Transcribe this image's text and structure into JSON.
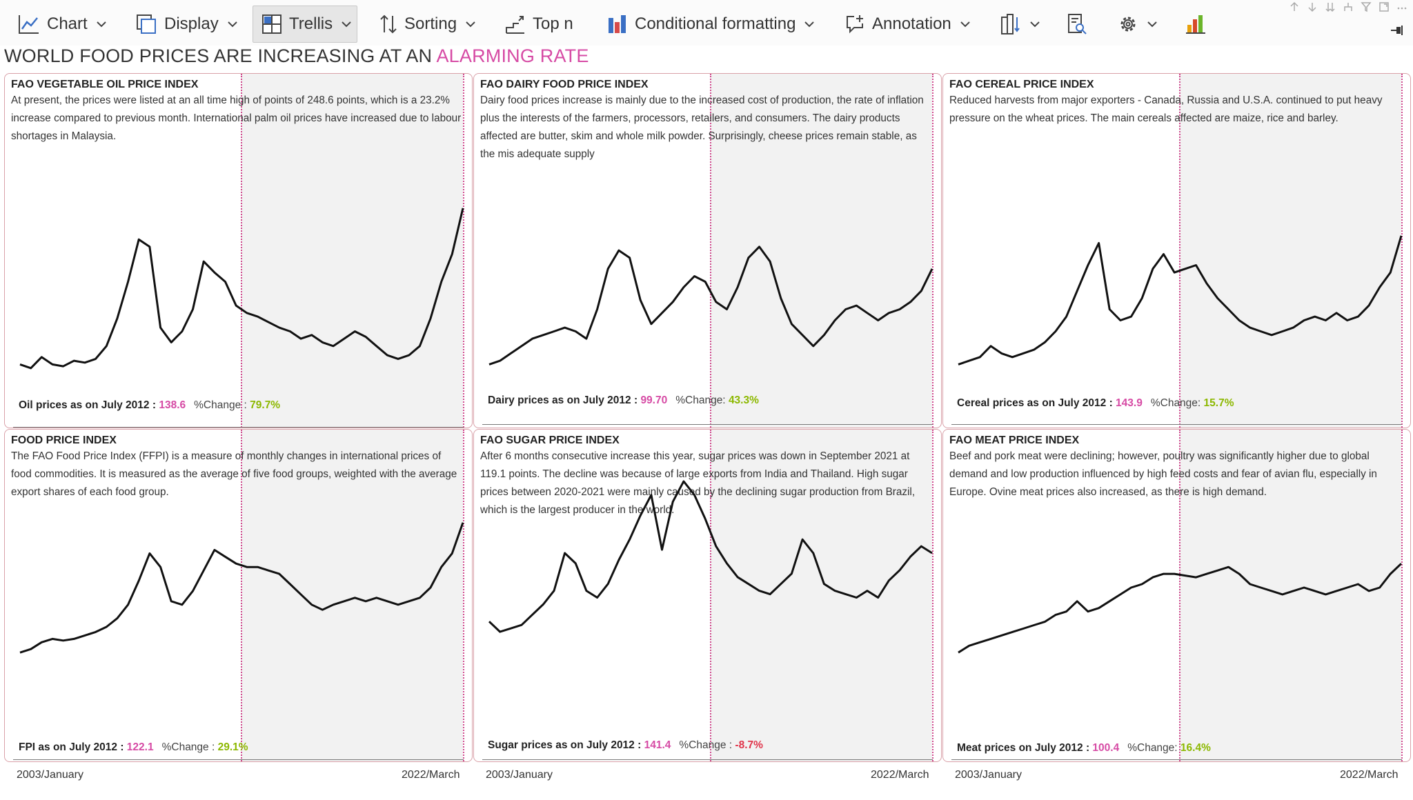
{
  "toolbar": {
    "chart_label": "Chart",
    "display_label": "Display",
    "trellis_label": "Trellis",
    "sorting_label": "Sorting",
    "topn_label": "Top n",
    "conditional_label": "Conditional formatting",
    "annotation_label": "Annotation"
  },
  "headline": {
    "main": "WORLD FOOD PRICES ARE INCREASING AT AN ",
    "accent": "ALARMING RATE"
  },
  "colors": {
    "accent": "#d64aa4",
    "positive": "#8cb800",
    "negative": "#e0344a",
    "panel_border": "#d9a0a8",
    "shade": "#f2f2f2"
  },
  "x_axis": {
    "start": "2003/January",
    "end": "2022/March"
  },
  "panels": [
    {
      "title": "FAO VEGETABLE OIL PRICE INDEX",
      "desc": "At present, the prices were listed at an all time high of points of 248.6 points, which is a 23.2% increase compared to previous month. International palm oil prices have increased due to labour shortages in Malaysia.",
      "footer_label": "Oil prices as on July 2012 :",
      "footer_value": "138.6",
      "change_label": "%Change :",
      "change_value": "79.7%",
      "change_positive": true
    },
    {
      "title": "FAO DAIRY FOOD PRICE INDEX",
      "desc": "Dairy food prices increase is mainly due to the increased cost of production, the rate of inflation plus the interests of the farmers, processors, retailers, and consumers. The dairy products affected are butter, skim and whole milk powder. Surprisingly, cheese prices remain stable, as the mis adequate supply",
      "footer_label": "Dairy prices as on July 2012 :",
      "footer_value": "99.70",
      "change_label": "%Change:",
      "change_value": "43.3%",
      "change_positive": true
    },
    {
      "title": "FAO CEREAL PRICE INDEX",
      "desc": "Reduced harvests from major exporters - Canada, Russia and U.S.A. continued to put heavy pressure on the wheat prices. The main cereals affected are maize, rice and barley.",
      "footer_label": "Cereal prices as on July 2012 :",
      "footer_value": "143.9",
      "change_label": "%Change:",
      "change_value": "15.7%",
      "change_positive": true
    },
    {
      "title": "FOOD PRICE INDEX",
      "desc": "The FAO Food Price Index (FFPI) is a measure of monthly changes in international prices of food commodities. It is measured as the average of five food groups, weighted with the average export shares of each food group.",
      "footer_label": "FPI as on July 2012 :",
      "footer_value": "122.1",
      "change_label": "%Change :",
      "change_value": "29.1%",
      "change_positive": true
    },
    {
      "title": "FAO SUGAR PRICE INDEX",
      "desc": "After 6 months consecutive increase this year, sugar prices was down in September 2021 at 119.1 points. The decline was because of large exports from India and Thailand. High sugar prices between 2020-2021 were mainly caused by the declining sugar production from Brazil, which is the largest producer in the world.",
      "footer_label": "Sugar prices as on July 2012 :",
      "footer_value": "141.4",
      "change_label": "%Change :",
      "change_value": "-8.7%",
      "change_positive": false
    },
    {
      "title": "FAO MEAT PRICE INDEX",
      "desc": "Beef and pork meat were declining; however, poultry was significantly higher due to global demand and low production influenced by high feed costs and fear of avian flu, especially in Europe. Ovine meat prices also increased, as there is high demand.",
      "footer_label": "Meat prices on July 2012 :",
      "footer_value": "100.4",
      "change_label": "%Change:",
      "change_value": "16.4%",
      "change_positive": true
    }
  ]
}
